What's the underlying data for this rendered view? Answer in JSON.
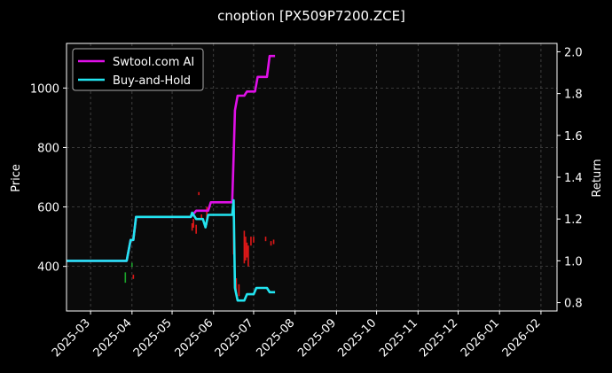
{
  "chart_data": {
    "type": "line",
    "title": "cnoption [PX509P7200.ZCE]",
    "ylabel": "Price",
    "y2label": "Return",
    "xlim": [
      "2025-02-11",
      "2026-02-13"
    ],
    "ylim": [
      250,
      1150
    ],
    "y2lim": [
      0.76,
      2.04
    ],
    "grid": true,
    "legend_position": "top-left",
    "x_ticks": [
      "2025-03",
      "2025-04",
      "2025-05",
      "2025-06",
      "2025-07",
      "2025-08",
      "2025-09",
      "2025-10",
      "2025-11",
      "2025-12",
      "2026-01",
      "2026-02"
    ],
    "y_ticks": [
      400,
      600,
      800,
      1000
    ],
    "y2_ticks": [
      "0.8",
      "1.0",
      "1.2",
      "1.4",
      "1.6",
      "1.8",
      "2.0"
    ],
    "series": [
      {
        "name": "Swtool.com AI",
        "color": "#e010e8",
        "axis": "right",
        "points": [
          [
            "2025-02-11",
            1.0
          ],
          [
            "2025-03-28",
            1.0
          ],
          [
            "2025-03-31",
            1.1
          ],
          [
            "2025-04-02",
            1.1
          ],
          [
            "2025-04-04",
            1.21
          ],
          [
            "2025-05-15",
            1.21
          ],
          [
            "2025-05-19",
            1.24
          ],
          [
            "2025-05-28",
            1.24
          ],
          [
            "2025-05-30",
            1.28
          ],
          [
            "2025-06-15",
            1.28
          ],
          [
            "2025-06-16",
            1.5
          ],
          [
            "2025-06-17",
            1.72
          ],
          [
            "2025-06-19",
            1.79
          ],
          [
            "2025-06-24",
            1.79
          ],
          [
            "2025-06-26",
            1.81
          ],
          [
            "2025-07-02",
            1.81
          ],
          [
            "2025-07-04",
            1.88
          ],
          [
            "2025-07-11",
            1.88
          ],
          [
            "2025-07-13",
            1.98
          ],
          [
            "2025-07-17",
            1.98
          ]
        ]
      },
      {
        "name": "Buy-and-Hold",
        "color": "#22e4f0",
        "axis": "right",
        "points": [
          [
            "2025-02-11",
            1.0
          ],
          [
            "2025-03-28",
            1.0
          ],
          [
            "2025-03-31",
            1.1
          ],
          [
            "2025-04-02",
            1.1
          ],
          [
            "2025-04-04",
            1.21
          ],
          [
            "2025-05-15",
            1.21
          ],
          [
            "2025-05-16",
            1.23
          ],
          [
            "2025-05-19",
            1.2
          ],
          [
            "2025-05-24",
            1.2
          ],
          [
            "2025-05-26",
            1.16
          ],
          [
            "2025-05-28",
            1.22
          ],
          [
            "2025-06-15",
            1.22
          ],
          [
            "2025-06-16",
            1.29
          ],
          [
            "2025-06-17",
            0.87
          ],
          [
            "2025-06-19",
            0.81
          ],
          [
            "2025-06-24",
            0.81
          ],
          [
            "2025-06-26",
            0.84
          ],
          [
            "2025-07-01",
            0.84
          ],
          [
            "2025-07-03",
            0.87
          ],
          [
            "2025-07-11",
            0.87
          ],
          [
            "2025-07-13",
            0.85
          ],
          [
            "2025-07-17",
            0.85
          ]
        ]
      }
    ],
    "candles": [
      {
        "date": "2025-03-27",
        "low": 345,
        "high": 380,
        "color": "#1aa32a"
      },
      {
        "date": "2025-04-01",
        "low": 398,
        "high": 412,
        "color": "#1aa32a"
      },
      {
        "date": "2025-04-02",
        "low": 358,
        "high": 372,
        "color": "#e01818"
      },
      {
        "date": "2025-05-16",
        "low": 520,
        "high": 545,
        "color": "#e01818"
      },
      {
        "date": "2025-05-17",
        "low": 530,
        "high": 560,
        "color": "#e01818"
      },
      {
        "date": "2025-05-19",
        "low": 510,
        "high": 540,
        "color": "#e01818"
      },
      {
        "date": "2025-05-21",
        "low": 640,
        "high": 650,
        "color": "#e01818"
      },
      {
        "date": "2025-05-23",
        "low": 560,
        "high": 575,
        "color": "#e01818"
      },
      {
        "date": "2025-05-27",
        "low": 540,
        "high": 600,
        "color": "#e01818"
      },
      {
        "date": "2025-06-16",
        "low": 440,
        "high": 620,
        "color": "#e01818"
      },
      {
        "date": "2025-06-18",
        "low": 300,
        "high": 360,
        "color": "#e01818"
      },
      {
        "date": "2025-06-20",
        "low": 300,
        "high": 340,
        "color": "#e01818"
      },
      {
        "date": "2025-06-24",
        "low": 410,
        "high": 520,
        "color": "#e01818"
      },
      {
        "date": "2025-06-25",
        "low": 420,
        "high": 500,
        "color": "#e01818"
      },
      {
        "date": "2025-06-26",
        "low": 430,
        "high": 480,
        "color": "#e01818"
      },
      {
        "date": "2025-06-27",
        "low": 400,
        "high": 470,
        "color": "#e01818"
      },
      {
        "date": "2025-06-29",
        "low": 470,
        "high": 500,
        "color": "#e01818"
      },
      {
        "date": "2025-07-01",
        "low": 480,
        "high": 500,
        "color": "#e01818"
      },
      {
        "date": "2025-07-10",
        "low": 485,
        "high": 500,
        "color": "#e01818"
      },
      {
        "date": "2025-07-14",
        "low": 470,
        "high": 485,
        "color": "#e01818"
      },
      {
        "date": "2025-07-16",
        "low": 475,
        "high": 490,
        "color": "#e01818"
      }
    ]
  }
}
